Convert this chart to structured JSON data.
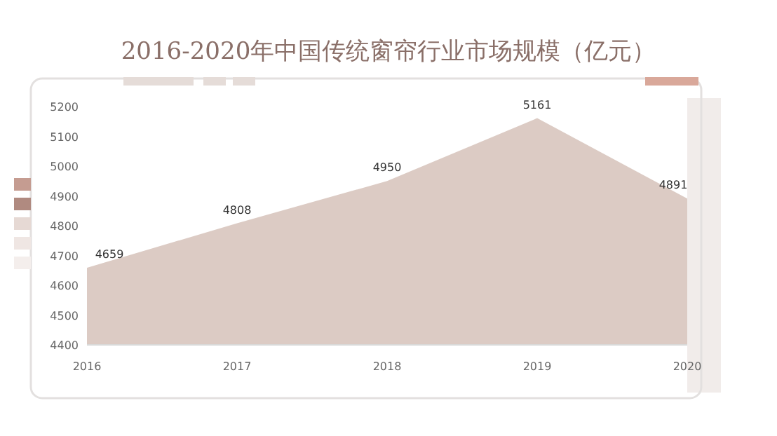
{
  "chart_data": {
    "type": "area",
    "title": "2016-2020年中国传统窗帘行业市场规模（亿元）",
    "categories": [
      "2016",
      "2017",
      "2018",
      "2019",
      "2020"
    ],
    "values": [
      4659,
      4808,
      4950,
      5161,
      4891
    ],
    "color": "#dccbc4",
    "ylim": [
      4400,
      5200
    ],
    "yticks": [
      4400,
      4500,
      4600,
      4700,
      4800,
      4900,
      5000,
      5100,
      5200
    ],
    "data_labels": true,
    "grid": false
  }
}
